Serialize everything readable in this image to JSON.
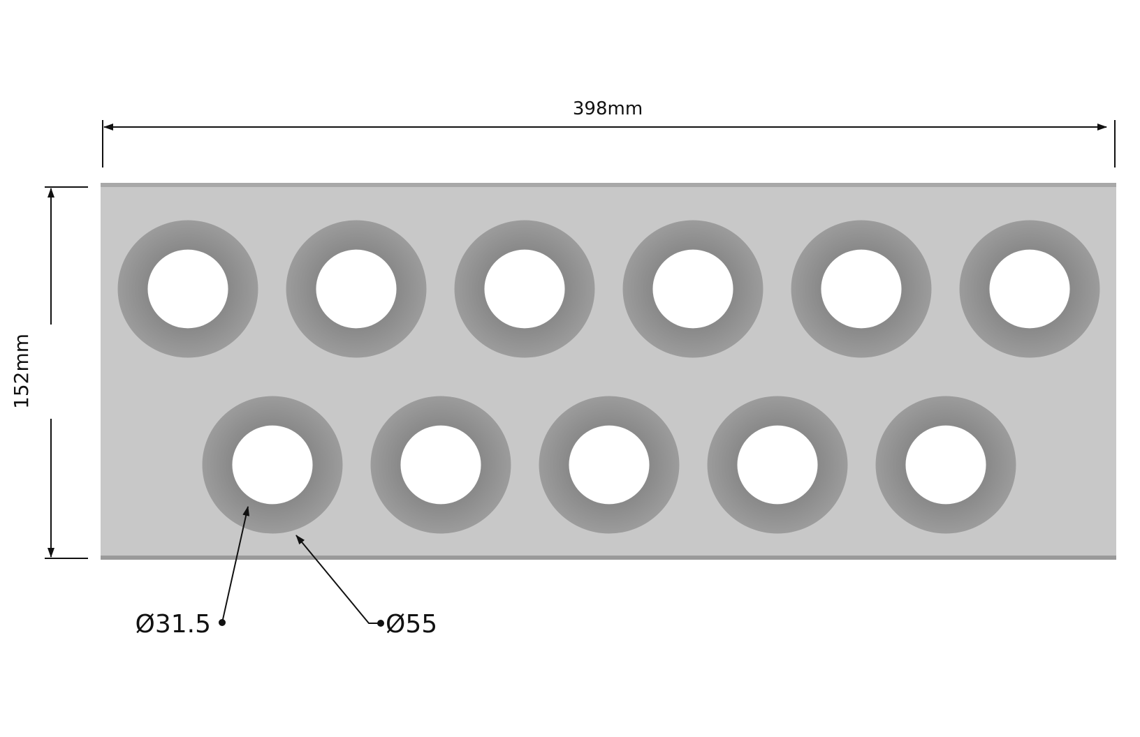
{
  "dimensions": {
    "width_label": "398mm",
    "height_label": "152mm",
    "hole_label": "Ø31.5",
    "dimple_label": "Ø55"
  },
  "plate": {
    "width_mm": 398,
    "height_mm": 152,
    "hole_diameter_mm": 31.5,
    "dimple_diameter_mm": 55,
    "rows": [
      {
        "count": 6
      },
      {
        "count": 5
      }
    ]
  },
  "colors": {
    "plate": "#c8c8c8",
    "plate_edge": "#9a9a9a",
    "dimple": "#8f8f8f",
    "hole": "#ffffff",
    "lines": "#111111"
  }
}
